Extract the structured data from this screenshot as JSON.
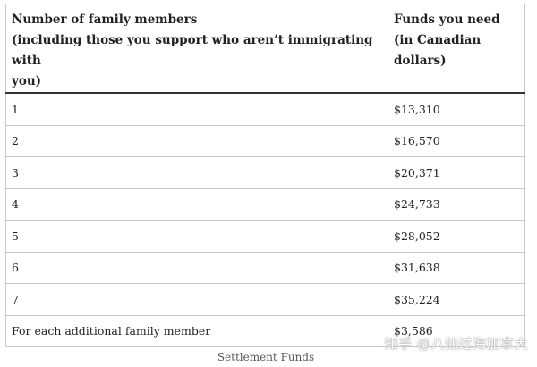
{
  "table": {
    "headers": [
      "Number of family members\n(including those you support who aren’t immigrating with you)",
      "Funds you need\n(in Canadian\ndollars)"
    ],
    "header_col1_lines": [
      "Number of family members",
      "(including those you support who aren’t immigrating with",
      "you)"
    ],
    "header_col2_lines": [
      "Funds you need",
      "(in Canadian",
      "dollars)"
    ],
    "rows": [
      {
        "members": "1",
        "funds": "$13,310"
      },
      {
        "members": "2",
        "funds": "$16,570"
      },
      {
        "members": "3",
        "funds": "$20,371"
      },
      {
        "members": "4",
        "funds": "$24,733"
      },
      {
        "members": "5",
        "funds": "$28,052"
      },
      {
        "members": "6",
        "funds": "$31,638"
      },
      {
        "members": "7",
        "funds": "$35,224"
      },
      {
        "members": "For each additional family member",
        "funds": "$3,586"
      }
    ]
  },
  "caption": "Settlement Funds",
  "watermark": "知乎 @八仙过海加拿大",
  "colors": {
    "border": "#c9c9c9",
    "header_divider": "#333333",
    "text": "#222222",
    "caption": "#555555"
  }
}
